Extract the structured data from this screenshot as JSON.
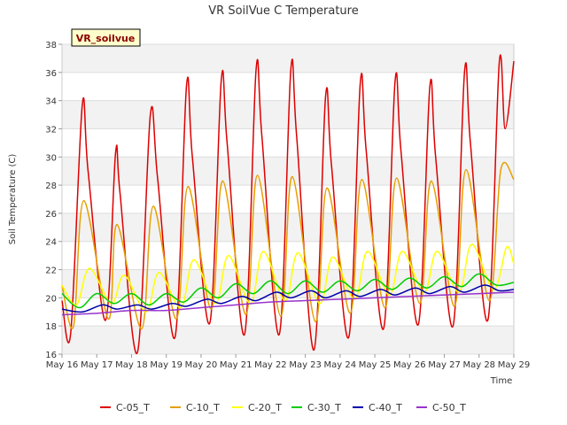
{
  "chart_data": {
    "type": "line",
    "title": "VR SoilVue C Temperature",
    "xlabel": "Time",
    "ylabel": "Soil Temperature (C)",
    "site_label": "VR_soilvue",
    "ylim": [
      16,
      38
    ],
    "yticks": [
      16,
      18,
      20,
      22,
      24,
      26,
      28,
      30,
      32,
      34,
      36,
      38
    ],
    "xlim": [
      "2024-05-16",
      "2024-05-29"
    ],
    "xtick_labels": [
      "May 16",
      "May 17",
      "May 18",
      "May 19",
      "May 20",
      "May 21",
      "May 22",
      "May 23",
      "May 24",
      "May 25",
      "May 26",
      "May 27",
      "May 28",
      "May 29"
    ],
    "grid": true,
    "legend": "bottom",
    "series": [
      {
        "name": "C-05_T",
        "color": "#dd0000",
        "x_dates": [
          "2024-05-16T00:00",
          "2024-05-16T06:00",
          "2024-05-16T14:00",
          "2024-05-16T18:00",
          "2024-05-17T06:00",
          "2024-05-17T13:00",
          "2024-05-17T16:00",
          "2024-05-18T04:00",
          "2024-05-18T13:00",
          "2024-05-18T18:00",
          "2024-05-19T06:00",
          "2024-05-19T14:00",
          "2024-05-19T18:00",
          "2024-05-20T06:00",
          "2024-05-20T14:00",
          "2024-05-20T18:00",
          "2024-05-21T06:00",
          "2024-05-21T14:00",
          "2024-05-21T18:00",
          "2024-05-22T06:00",
          "2024-05-22T14:00",
          "2024-05-22T18:00",
          "2024-05-23T06:00",
          "2024-05-23T14:00",
          "2024-05-23T18:00",
          "2024-05-24T06:00",
          "2024-05-24T14:00",
          "2024-05-24T18:00",
          "2024-05-25T06:00",
          "2024-05-25T14:00",
          "2024-05-25T18:00",
          "2024-05-26T06:00",
          "2024-05-26T14:00",
          "2024-05-26T18:00",
          "2024-05-27T06:00",
          "2024-05-27T14:00",
          "2024-05-27T18:00",
          "2024-05-28T06:00",
          "2024-05-28T14:00",
          "2024-05-28T18:00",
          "2024-05-29T00:00"
        ],
        "values": [
          19.8,
          17.5,
          33.7,
          29.0,
          18.4,
          30.3,
          27.5,
          16.1,
          33.0,
          28.5,
          17.2,
          35.1,
          30.0,
          18.2,
          35.5,
          31.0,
          17.4,
          36.2,
          31.5,
          17.4,
          36.2,
          31.5,
          16.3,
          34.3,
          29.5,
          17.2,
          35.3,
          30.5,
          17.8,
          35.4,
          30.5,
          18.1,
          35.0,
          30.0,
          18.0,
          36.1,
          31.0,
          18.4,
          36.8,
          32.0,
          36.8
        ]
      },
      {
        "name": "C-10_T",
        "color": "#e69f00",
        "x_dates": [
          "2024-05-16T00:00",
          "2024-05-16T08:00",
          "2024-05-16T15:00",
          "2024-05-17T08:00",
          "2024-05-17T14:00",
          "2024-05-18T07:00",
          "2024-05-18T15:00",
          "2024-05-19T07:00",
          "2024-05-19T15:00",
          "2024-05-20T07:00",
          "2024-05-20T15:00",
          "2024-05-21T07:00",
          "2024-05-21T15:00",
          "2024-05-22T07:00",
          "2024-05-22T15:00",
          "2024-05-23T07:00",
          "2024-05-23T15:00",
          "2024-05-24T07:00",
          "2024-05-24T15:00",
          "2024-05-25T07:00",
          "2024-05-25T15:00",
          "2024-05-26T07:00",
          "2024-05-26T15:00",
          "2024-05-27T07:00",
          "2024-05-27T15:00",
          "2024-05-28T07:00",
          "2024-05-28T15:00",
          "2024-05-29T00:00"
        ],
        "values": [
          20.9,
          18.0,
          26.9,
          18.5,
          25.2,
          17.8,
          26.5,
          18.5,
          27.9,
          19.2,
          28.3,
          18.8,
          28.7,
          18.7,
          28.6,
          18.3,
          27.8,
          18.9,
          28.4,
          19.3,
          28.5,
          19.6,
          28.3,
          19.4,
          29.1,
          19.8,
          29.1,
          28.4
        ]
      },
      {
        "name": "C-20_T",
        "color": "#ffff00",
        "x_dates": [
          "2024-05-16T00:00",
          "2024-05-16T10:00",
          "2024-05-16T19:00",
          "2024-05-17T10:00",
          "2024-05-17T19:00",
          "2024-05-18T10:00",
          "2024-05-18T19:00",
          "2024-05-19T10:00",
          "2024-05-19T19:00",
          "2024-05-20T10:00",
          "2024-05-20T19:00",
          "2024-05-21T10:00",
          "2024-05-21T19:00",
          "2024-05-22T10:00",
          "2024-05-22T19:00",
          "2024-05-23T10:00",
          "2024-05-23T19:00",
          "2024-05-24T10:00",
          "2024-05-24T19:00",
          "2024-05-25T10:00",
          "2024-05-25T19:00",
          "2024-05-26T10:00",
          "2024-05-26T19:00",
          "2024-05-27T10:00",
          "2024-05-27T19:00",
          "2024-05-28T10:00",
          "2024-05-28T19:00",
          "2024-05-29T00:00"
        ],
        "values": [
          20.9,
          19.5,
          22.1,
          19.6,
          21.6,
          19.0,
          21.8,
          19.3,
          22.7,
          19.6,
          23.0,
          19.6,
          23.3,
          19.8,
          23.2,
          19.6,
          22.9,
          19.9,
          23.3,
          20.2,
          23.3,
          20.4,
          23.3,
          20.4,
          23.8,
          20.6,
          23.6,
          22.4
        ]
      },
      {
        "name": "C-30_T",
        "color": "#00cc00",
        "x_dates": [
          "2024-05-16T00:00",
          "2024-05-16T12:00",
          "2024-05-17T00:00",
          "2024-05-17T12:00",
          "2024-05-18T00:00",
          "2024-05-18T12:00",
          "2024-05-19T00:00",
          "2024-05-19T12:00",
          "2024-05-20T00:00",
          "2024-05-20T12:00",
          "2024-05-21T00:00",
          "2024-05-21T12:00",
          "2024-05-22T00:00",
          "2024-05-22T12:00",
          "2024-05-23T00:00",
          "2024-05-23T12:00",
          "2024-05-24T00:00",
          "2024-05-24T12:00",
          "2024-05-25T00:00",
          "2024-05-25T12:00",
          "2024-05-26T00:00",
          "2024-05-26T12:00",
          "2024-05-27T00:00",
          "2024-05-27T12:00",
          "2024-05-28T00:00",
          "2024-05-28T12:00",
          "2024-05-29T00:00"
        ],
        "values": [
          20.3,
          19.3,
          20.3,
          19.6,
          20.3,
          19.5,
          20.3,
          19.7,
          20.7,
          20.0,
          21.0,
          20.3,
          21.2,
          20.3,
          21.2,
          20.4,
          21.2,
          20.5,
          21.3,
          20.6,
          21.4,
          20.7,
          21.5,
          20.8,
          21.7,
          20.9,
          21.1
        ]
      },
      {
        "name": "C-40_T",
        "color": "#0000aa",
        "x_dates": [
          "2024-05-16T00:00",
          "2024-05-16T14:00",
          "2024-05-17T04:00",
          "2024-05-17T14:00",
          "2024-05-18T04:00",
          "2024-05-18T14:00",
          "2024-05-19T04:00",
          "2024-05-19T14:00",
          "2024-05-20T04:00",
          "2024-05-20T14:00",
          "2024-05-21T04:00",
          "2024-05-21T14:00",
          "2024-05-22T04:00",
          "2024-05-22T14:00",
          "2024-05-23T04:00",
          "2024-05-23T14:00",
          "2024-05-24T04:00",
          "2024-05-24T14:00",
          "2024-05-25T04:00",
          "2024-05-25T14:00",
          "2024-05-26T04:00",
          "2024-05-26T14:00",
          "2024-05-27T04:00",
          "2024-05-27T14:00",
          "2024-05-28T04:00",
          "2024-05-28T14:00",
          "2024-05-29T00:00"
        ],
        "values": [
          19.2,
          19.0,
          19.5,
          19.2,
          19.5,
          19.2,
          19.6,
          19.4,
          19.9,
          19.6,
          20.1,
          19.8,
          20.4,
          20.0,
          20.5,
          20.0,
          20.5,
          20.1,
          20.6,
          20.2,
          20.7,
          20.3,
          20.8,
          20.4,
          20.9,
          20.5,
          20.6
        ]
      },
      {
        "name": "C-50_T",
        "color": "#9933cc",
        "x_dates": [
          "2024-05-16T00:00",
          "2024-05-17T00:00",
          "2024-05-18T00:00",
          "2024-05-19T00:00",
          "2024-05-20T00:00",
          "2024-05-21T00:00",
          "2024-05-22T00:00",
          "2024-05-23T00:00",
          "2024-05-24T00:00",
          "2024-05-25T00:00",
          "2024-05-26T00:00",
          "2024-05-27T00:00",
          "2024-05-28T00:00",
          "2024-05-29T00:00"
        ],
        "values": [
          18.8,
          18.9,
          19.1,
          19.1,
          19.3,
          19.5,
          19.7,
          19.8,
          19.9,
          20.0,
          20.1,
          20.2,
          20.3,
          20.4
        ]
      }
    ]
  }
}
